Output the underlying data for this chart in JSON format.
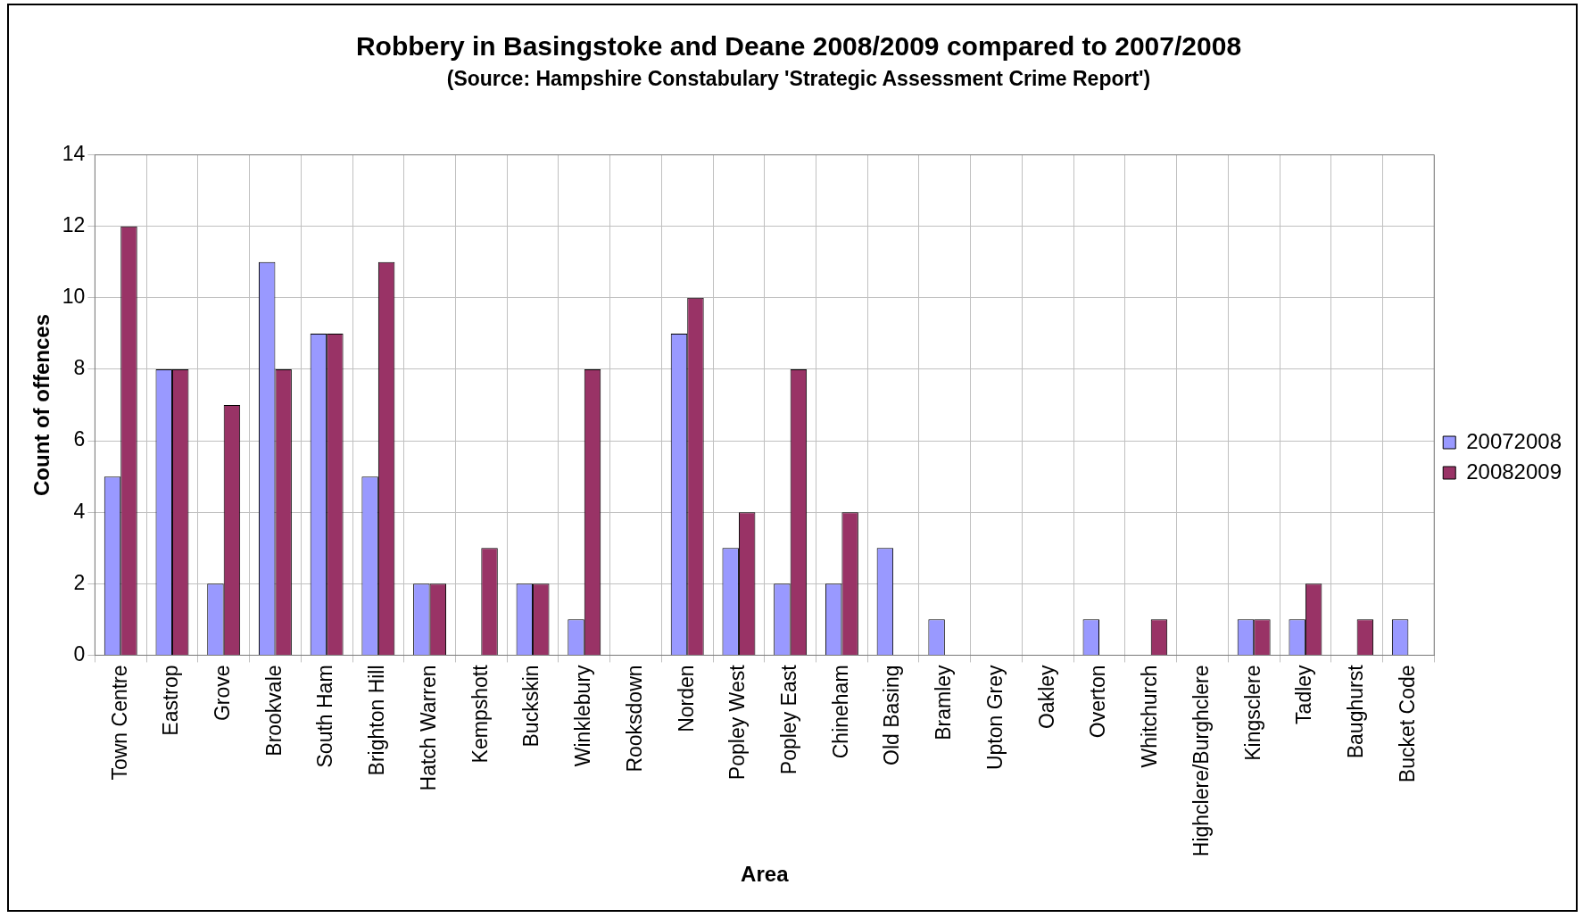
{
  "chart_data": {
    "type": "bar",
    "title": "Robbery in Basingstoke and Deane 2008/2009 compared to 2007/2008",
    "subtitle": "(Source: Hampshire Constabulary 'Strategic Assessment Crime Report')",
    "xlabel": "Area",
    "ylabel": "Count of offences",
    "categories": [
      "Town Centre",
      "Eastrop",
      "Grove",
      "Brookvale",
      "South Ham",
      "Brighton Hill",
      "Hatch Warren",
      "Kempshott",
      "Buckskin",
      "Winklebury",
      "Rooksdown",
      "Norden",
      "Popley West",
      "Popley East",
      "Chineham",
      "Old Basing",
      "Bramley",
      "Upton Grey",
      "Oakley",
      "Overton",
      "Whitchurch",
      "Highclere/Burghclere",
      "Kingsclere",
      "Tadley",
      "Baughurst",
      "Bucket Code"
    ],
    "series": [
      {
        "name": "20072008",
        "color": "#9999ff",
        "values": [
          5,
          8,
          2,
          11,
          9,
          5,
          2,
          0,
          2,
          1,
          0,
          9,
          3,
          2,
          2,
          3,
          1,
          0,
          0,
          1,
          0,
          0,
          1,
          1,
          0,
          1
        ]
      },
      {
        "name": "20082009",
        "color": "#993366",
        "values": [
          12,
          8,
          7,
          8,
          9,
          11,
          2,
          3,
          2,
          8,
          0,
          10,
          4,
          8,
          4,
          0,
          0,
          0,
          0,
          0,
          1,
          0,
          1,
          2,
          1,
          0
        ]
      }
    ],
    "ylim": [
      0,
      14
    ],
    "yticks": [
      0,
      2,
      4,
      6,
      8,
      10,
      12,
      14
    ],
    "grid": true,
    "legend": "right"
  }
}
